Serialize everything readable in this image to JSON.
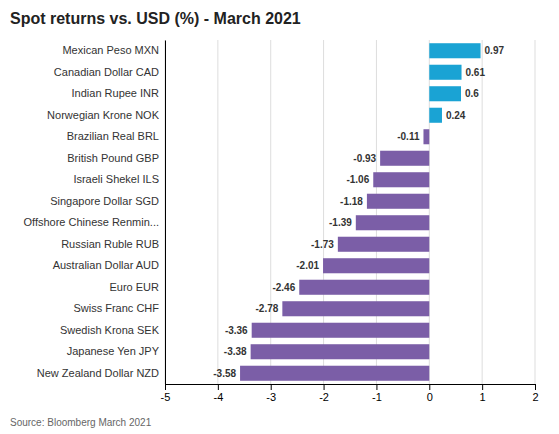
{
  "chart_data": {
    "type": "bar",
    "orientation": "horizontal",
    "title": "Spot returns vs. USD (%) - March 2021",
    "categories": [
      "New Zealand Dollar NZD",
      "Japanese Yen JPY",
      "Swedish Krona SEK",
      "Swiss Franc CHF",
      "Euro EUR",
      "Australian Dollar AUD",
      "Russian Ruble RUB",
      "Offshore Chinese Renmin...",
      "Singapore Dollar SGD",
      "Israeli Shekel ILS",
      "British Pound GBP",
      "Brazilian Real BRL",
      "Norwegian Krone NOK",
      "Indian Rupee INR",
      "Canadian Dollar CAD",
      "Mexican Peso MXN"
    ],
    "values": [
      -3.58,
      -3.38,
      -3.36,
      -2.78,
      -2.46,
      -2.01,
      -1.73,
      -1.39,
      -1.18,
      -1.06,
      -0.93,
      -0.11,
      0.24,
      0.6,
      0.61,
      0.97
    ],
    "colors": [
      "#7b5ea7",
      "#7b5ea7",
      "#7b5ea7",
      "#7b5ea7",
      "#7b5ea7",
      "#7b5ea7",
      "#7b5ea7",
      "#7b5ea7",
      "#7b5ea7",
      "#7b5ea7",
      "#7b5ea7",
      "#7b5ea7",
      "#1aa3d4",
      "#1aa3d4",
      "#1aa3d4",
      "#1aa3d4"
    ],
    "xlim": [
      -5,
      2
    ],
    "xticks": [
      -5,
      -4,
      -3,
      -2,
      -1,
      0,
      1,
      2
    ],
    "grid": true,
    "data_labels": true,
    "annotations": [
      "Source: Bloomberg March 2021"
    ]
  }
}
